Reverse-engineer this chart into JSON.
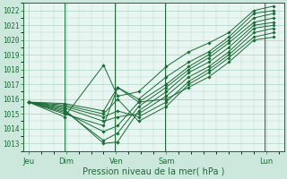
{
  "title": "",
  "xlabel": "Pression niveau de la mer( hPa )",
  "bg_color": "#cce8dc",
  "plot_bg_color": "#e8f5f0",
  "grid_color": "#99ccbb",
  "line_color": "#1a6b35",
  "marker_color": "#1a6b35",
  "ylim": [
    1012.5,
    1022.5
  ],
  "yticks": [
    1013,
    1014,
    1015,
    1016,
    1017,
    1018,
    1019,
    1020,
    1021,
    1022
  ],
  "day_labels": [
    "Jeu",
    "Dim",
    "Ven",
    "Sam",
    "Lun"
  ],
  "day_positions": [
    0.0,
    0.75,
    1.75,
    2.75,
    4.75
  ],
  "xlim": [
    -0.1,
    5.1
  ],
  "series": [
    [
      1015.8,
      1014.8,
      1018.3,
      1016.2,
      1016.5,
      1018.2,
      1019.2,
      1019.8,
      1020.5,
      1022.0,
      1022.3
    ],
    [
      1015.8,
      1015.0,
      1014.2,
      1016.8,
      1016.0,
      1017.5,
      1018.5,
      1019.2,
      1020.2,
      1021.8,
      1022.0
    ],
    [
      1015.8,
      1015.1,
      1013.8,
      1014.2,
      1015.8,
      1017.0,
      1018.2,
      1019.0,
      1020.0,
      1021.5,
      1021.8
    ],
    [
      1015.8,
      1015.2,
      1013.2,
      1013.7,
      1015.5,
      1016.8,
      1018.0,
      1018.8,
      1019.8,
      1021.2,
      1021.5
    ],
    [
      1015.8,
      1015.3,
      1013.0,
      1013.1,
      1015.2,
      1016.5,
      1017.8,
      1018.5,
      1019.5,
      1021.0,
      1021.2
    ],
    [
      1015.8,
      1015.4,
      1014.5,
      1014.8,
      1015.0,
      1016.2,
      1017.5,
      1018.2,
      1019.2,
      1020.8,
      1021.0
    ],
    [
      1015.8,
      1015.5,
      1014.8,
      1015.2,
      1014.8,
      1015.8,
      1017.2,
      1018.0,
      1019.0,
      1020.5,
      1020.8
    ],
    [
      1015.8,
      1015.6,
      1015.0,
      1016.0,
      1014.5,
      1015.5,
      1017.0,
      1017.8,
      1018.8,
      1020.2,
      1020.5
    ],
    [
      1015.8,
      1015.7,
      1015.2,
      1016.8,
      1015.8,
      1016.0,
      1016.8,
      1017.5,
      1018.5,
      1020.0,
      1020.2
    ]
  ],
  "x_vals": [
    0.0,
    0.72,
    1.5,
    1.78,
    2.2,
    2.75,
    3.2,
    3.6,
    4.0,
    4.5,
    4.9
  ],
  "vline_positions": [
    0.72,
    1.72,
    2.72,
    4.72
  ]
}
